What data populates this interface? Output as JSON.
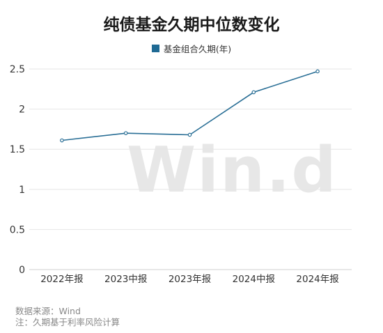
{
  "chart_data": {
    "type": "line",
    "title": "纯债基金久期中位数变化",
    "categories": [
      "2022年报",
      "2023中报",
      "2023年报",
      "2024中报",
      "2024年报"
    ],
    "series": [
      {
        "name": "基金组合久期(年)",
        "values": [
          1.61,
          1.7,
          1.68,
          2.21,
          2.47
        ]
      }
    ],
    "y_ticks": [
      "0",
      "0.5",
      "1",
      "1.5",
      "2",
      "2.5"
    ],
    "ylim": [
      0,
      2.5
    ],
    "grid": true,
    "legend_position": "top-center",
    "colors": {
      "line": "#2a6f96",
      "legend": "#1f6a94",
      "grid": "#e6e6e6"
    }
  },
  "watermark": "Win.d",
  "footer": {
    "source": "数据来源：Wind",
    "note": "注：久期基于利率风险计算"
  }
}
